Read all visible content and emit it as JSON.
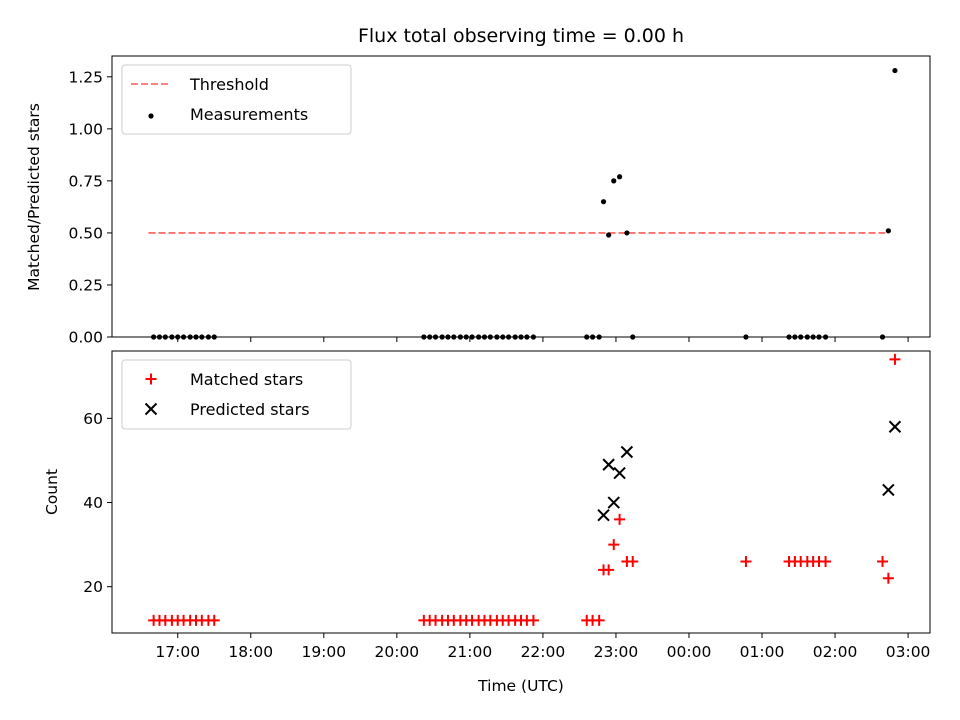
{
  "chart_data": [
    {
      "type": "scatter",
      "title": "Flux total observing time = 0.00 h",
      "xlabel": "",
      "ylabel": "Matched/Predicted stars",
      "ylim": [
        0,
        1.35
      ],
      "xlim": [
        16.1,
        27.3
      ],
      "yticks": [
        "0.00",
        "0.25",
        "0.50",
        "0.75",
        "1.00",
        "1.25"
      ],
      "grid": false,
      "legend_position": "upper-left",
      "legend": [
        "Threshold",
        "Measurements"
      ],
      "threshold": {
        "name": "Threshold",
        "value": 0.5,
        "x_range": [
          16.6,
          26.73
        ],
        "color": "#ff7070"
      },
      "series": [
        {
          "name": "Measurements",
          "marker": "dot",
          "color": "#000000",
          "x": [
            16.67,
            16.75,
            16.83,
            16.92,
            17.0,
            17.08,
            17.17,
            17.25,
            17.33,
            17.42,
            17.5,
            20.37,
            20.45,
            20.53,
            20.62,
            20.7,
            20.78,
            20.87,
            20.95,
            21.03,
            21.12,
            21.2,
            21.28,
            21.37,
            21.45,
            21.53,
            21.62,
            21.7,
            21.78,
            21.87,
            22.6,
            22.68,
            22.77,
            22.83,
            22.9,
            22.97,
            23.05,
            23.15,
            23.23,
            24.78,
            25.37,
            25.45,
            25.53,
            25.62,
            25.7,
            25.78,
            25.87,
            26.65,
            26.73,
            26.82
          ],
          "y": [
            0,
            0,
            0,
            0,
            0,
            0,
            0,
            0,
            0,
            0,
            0,
            0,
            0,
            0,
            0,
            0,
            0,
            0,
            0,
            0,
            0,
            0,
            0,
            0,
            0,
            0,
            0,
            0,
            0,
            0,
            0,
            0,
            0,
            0.65,
            0.49,
            0.75,
            0.77,
            0.5,
            0,
            0,
            0,
            0,
            0,
            0,
            0,
            0,
            0,
            0,
            0.51,
            1.28
          ]
        }
      ]
    },
    {
      "type": "scatter",
      "title": "",
      "xlabel": "Time (UTC)",
      "ylabel": "Count",
      "ylim": [
        9,
        76
      ],
      "xlim": [
        16.1,
        27.3
      ],
      "yticks": [
        "20",
        "40",
        "60"
      ],
      "xticks": [
        "17:00",
        "18:00",
        "19:00",
        "20:00",
        "21:00",
        "22:00",
        "23:00",
        "00:00",
        "01:00",
        "02:00",
        "03:00"
      ],
      "grid": false,
      "legend_position": "upper-left",
      "legend": [
        "Matched stars",
        "Predicted stars"
      ],
      "series": [
        {
          "name": "Matched stars",
          "marker": "plus",
          "color": "#ff0000",
          "x": [
            16.67,
            16.75,
            16.83,
            16.92,
            17.0,
            17.08,
            17.17,
            17.25,
            17.33,
            17.42,
            17.5,
            20.37,
            20.45,
            20.53,
            20.62,
            20.7,
            20.78,
            20.87,
            20.95,
            21.03,
            21.12,
            21.2,
            21.28,
            21.37,
            21.45,
            21.53,
            21.62,
            21.7,
            21.78,
            21.87,
            22.6,
            22.68,
            22.77,
            22.83,
            22.9,
            22.97,
            23.05,
            23.15,
            23.23,
            24.78,
            25.37,
            25.45,
            25.53,
            25.62,
            25.7,
            25.78,
            25.87,
            26.65,
            26.73,
            26.82
          ],
          "y": [
            12,
            12,
            12,
            12,
            12,
            12,
            12,
            12,
            12,
            12,
            12,
            12,
            12,
            12,
            12,
            12,
            12,
            12,
            12,
            12,
            12,
            12,
            12,
            12,
            12,
            12,
            12,
            12,
            12,
            12,
            12,
            12,
            12,
            24,
            24,
            30,
            36,
            26,
            26,
            26,
            26,
            26,
            26,
            26,
            26,
            26,
            26,
            26,
            22,
            74
          ]
        },
        {
          "name": "Predicted stars",
          "marker": "x",
          "color": "#000000",
          "x": [
            22.83,
            22.9,
            22.97,
            23.05,
            23.15,
            26.73,
            26.82
          ],
          "y": [
            37,
            49,
            40,
            47,
            52,
            43,
            58
          ]
        }
      ]
    }
  ]
}
